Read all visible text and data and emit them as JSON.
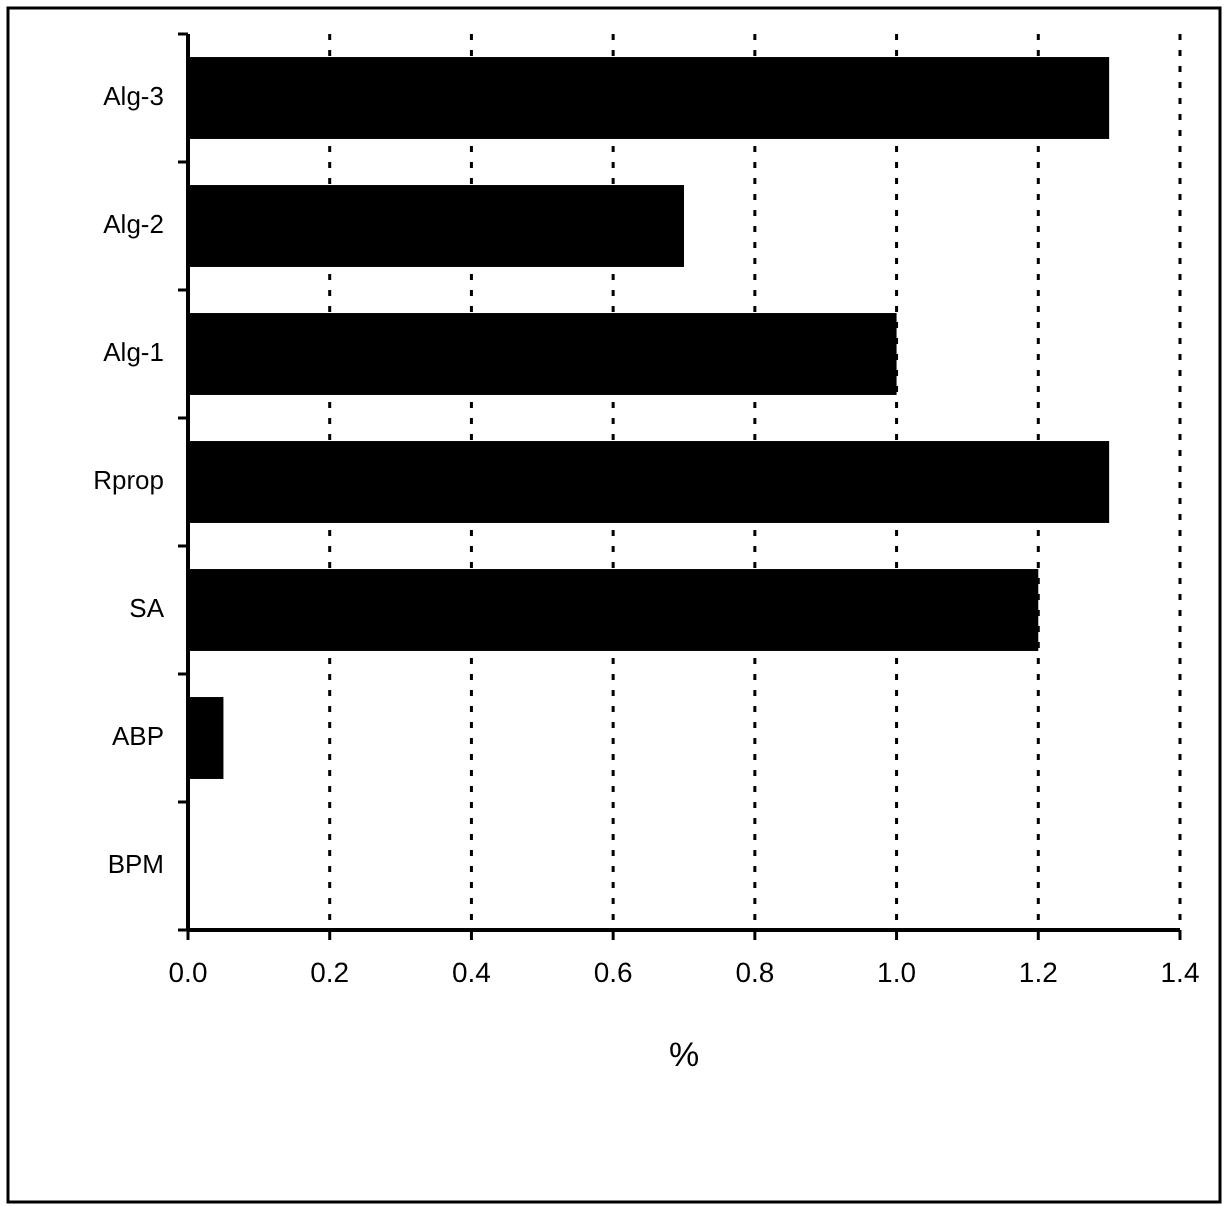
{
  "chart_data": {
    "type": "bar",
    "orientation": "horizontal",
    "xlabel": "%",
    "categories": [
      "Alg-3",
      "Alg-2",
      "Alg-1",
      "Rprop",
      "SA",
      "ABP",
      "BPM"
    ],
    "values": [
      1.3,
      0.7,
      1.0,
      1.3,
      1.2,
      0.05,
      0
    ],
    "color": "#000000",
    "xlim": [
      0,
      1.4
    ],
    "xticks": [
      {
        "value": 0,
        "label": "0.0"
      },
      0.2,
      0.4,
      0.6,
      0.8,
      {
        "value": 1,
        "label": "1.0"
      },
      1.2,
      1.4
    ],
    "grid": "x"
  }
}
